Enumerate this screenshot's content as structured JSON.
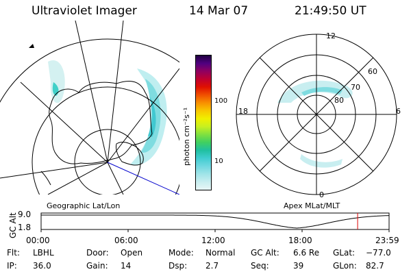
{
  "header": {
    "instrument": "Ultraviolet Imager",
    "date": "14 Mar 07",
    "time": "21:49:50 UT"
  },
  "geo_map": {
    "label": "Geographic Lat/Lon"
  },
  "polar_map": {
    "label": "Apex MLat/MLT",
    "mlt_labels": {
      "top": "12",
      "left": "18",
      "right": "6",
      "bottom": "0"
    },
    "lat_labels": [
      "60",
      "70",
      "80"
    ]
  },
  "colorbar": {
    "unit_label": "photon cm⁻²s⁻¹",
    "ticks": [
      "100",
      "10"
    ],
    "colors": [
      "#e8f6f6",
      "#c8eef0",
      "#a0e4e8",
      "#70d8e0",
      "#40ccd0",
      "#20c0a0",
      "#40d060",
      "#80e040",
      "#c8f020",
      "#f0f000",
      "#f8c800",
      "#f89000",
      "#f05000",
      "#e01000",
      "#c00030",
      "#900060",
      "#500080",
      "#200040"
    ]
  },
  "altitude_plot": {
    "ylabel": "GC Alt",
    "yticks": [
      "9.0",
      "1.8"
    ],
    "xticks": [
      "00:00",
      "06:00",
      "12:00",
      "18:00",
      "23:59"
    ],
    "current_time_marker_color": "#dd0000"
  },
  "info": {
    "rows": [
      [
        {
          "label": "Flt:",
          "value": "LBHL"
        },
        {
          "label": "Door:",
          "value": "Open"
        },
        {
          "label": "Mode:",
          "value": "Normal"
        },
        {
          "label": "GC Alt:",
          "value": "6.6 Re"
        },
        {
          "label": "GLat:",
          "value": "−77.0"
        }
      ],
      [
        {
          "label": "IP:",
          "value": "36.0"
        },
        {
          "label": "Gain:",
          "value": "14"
        },
        {
          "label": "Dsp:",
          "value": "2.7"
        },
        {
          "label": "Seq:",
          "value": "39"
        },
        {
          "label": "GLon:",
          "value": "82.7"
        }
      ]
    ]
  }
}
